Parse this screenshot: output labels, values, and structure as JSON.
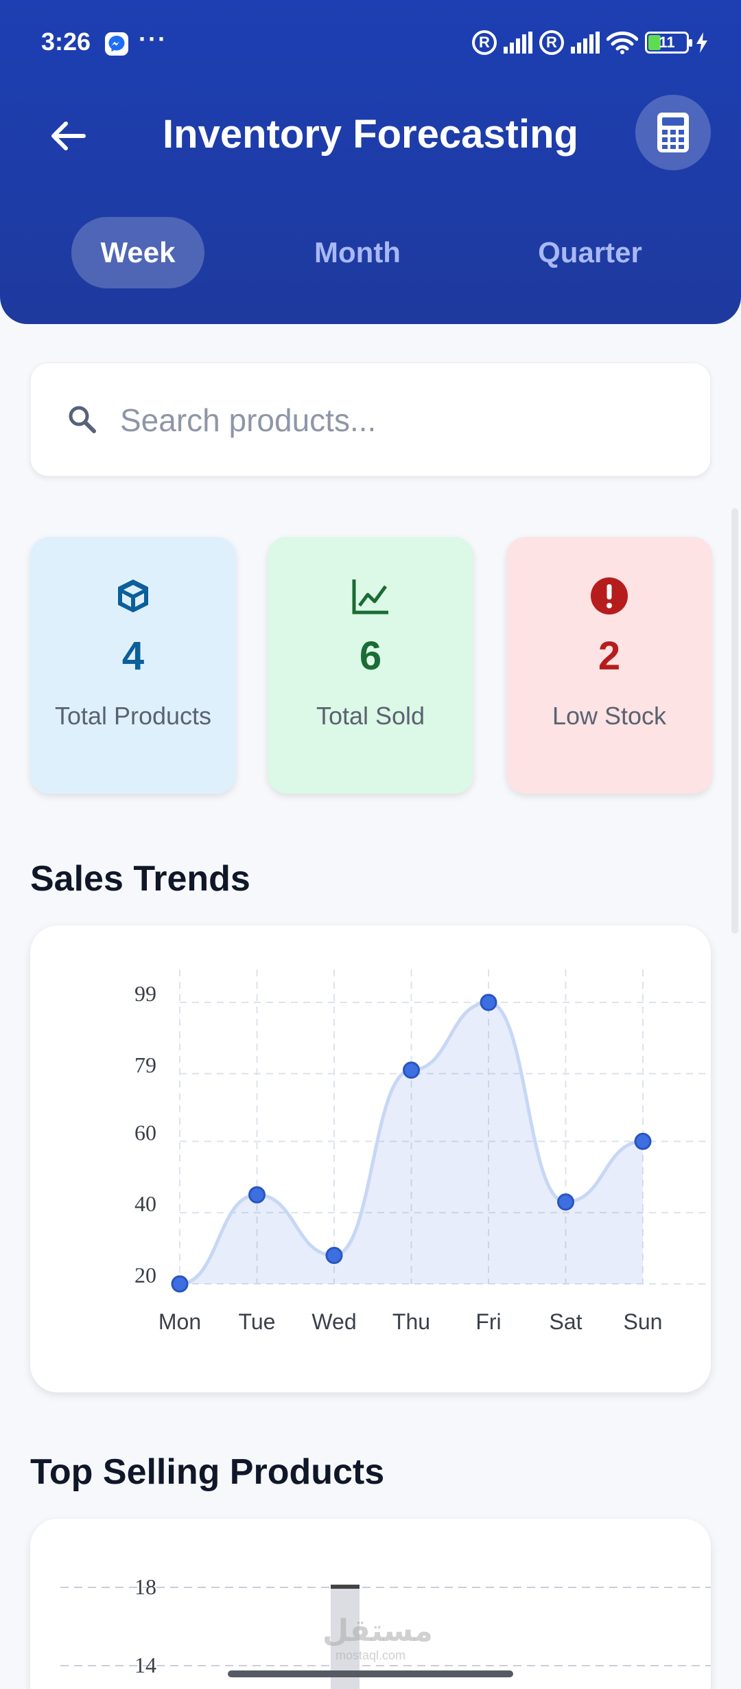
{
  "status_bar": {
    "time": "3:26",
    "more": "···",
    "r_label": "R",
    "battery": "11"
  },
  "header": {
    "title": "Inventory Forecasting"
  },
  "tabs": [
    {
      "label": "Week",
      "active": true
    },
    {
      "label": "Month",
      "active": false
    },
    {
      "label": "Quarter",
      "active": false
    }
  ],
  "search": {
    "placeholder": "Search products..."
  },
  "stats": [
    {
      "value": "4",
      "label": "Total Products",
      "color": "#0b5f9b",
      "bg": "#dff0fd",
      "icon": "box-icon"
    },
    {
      "value": "6",
      "label": "Total Sold",
      "color": "#1b6b34",
      "bg": "#dcf8e6",
      "icon": "trend-chart-icon"
    },
    {
      "value": "2",
      "label": "Low Stock",
      "color": "#b71c1c",
      "bg": "#fde3e3",
      "icon": "alert-icon"
    }
  ],
  "sections": {
    "sales_trends": "Sales Trends",
    "top_selling": "Top Selling Products"
  },
  "chart_data": [
    {
      "type": "area",
      "title": "Sales Trends",
      "categories": [
        "Mon",
        "Tue",
        "Wed",
        "Thu",
        "Fri",
        "Sat",
        "Sun"
      ],
      "values": [
        20,
        45,
        28,
        80,
        99,
        43,
        60
      ],
      "yticks": [
        20,
        40,
        60,
        79,
        99
      ],
      "ylim": [
        20,
        99
      ],
      "grid": true,
      "color": "#3d6fe0"
    },
    {
      "type": "bar",
      "title": "Top Selling Products",
      "yticks": [
        14,
        18
      ],
      "grid": true
    }
  ],
  "watermark": {
    "arabic": "مستقل",
    "latin": "mostaql.com"
  }
}
